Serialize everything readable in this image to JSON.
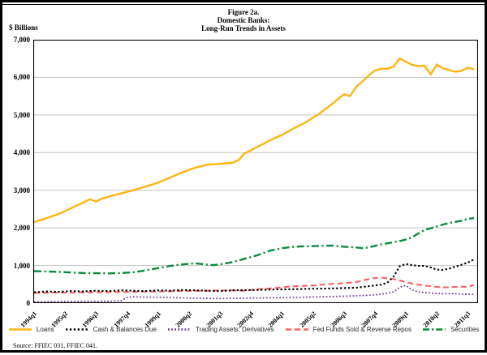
{
  "header": {
    "line1": "Figure 2a.",
    "line2": "Domestic Banks:",
    "line3": "Long-Run Trends in Assets"
  },
  "footer": {
    "source": "Source: FFIEC 031, FFIEC 041."
  },
  "chart_data": {
    "type": "line",
    "title": "Figure 2a. Domestic Banks: Long-Run Trends in Assets",
    "y_axis_label": "$ Billions",
    "ylim": [
      0,
      7000
    ],
    "grid": "horizontal",
    "legend_position": "bottom",
    "y_ticks": [
      {
        "value": 0,
        "label": "0"
      },
      {
        "value": 1000,
        "label": "1,000"
      },
      {
        "value": 2000,
        "label": "2,000"
      },
      {
        "value": 3000,
        "label": "3,000"
      },
      {
        "value": 4000,
        "label": "4,000"
      },
      {
        "value": 5000,
        "label": "5,000"
      },
      {
        "value": 6000,
        "label": "6,000"
      },
      {
        "value": 7000,
        "label": "7,000"
      }
    ],
    "x_start": "1994q1",
    "x_frequency": "quarterly",
    "x_count": 72,
    "x_tick_indices": [
      0,
      5,
      10,
      15,
      20,
      25,
      30,
      35,
      40,
      45,
      50,
      55,
      60,
      65,
      70
    ],
    "x_tick_labels": [
      "1994q1",
      "1995q2",
      "1996q3",
      "1997q4",
      "1999q1",
      "2000q2",
      "2001q3",
      "2002q4",
      "2004q1",
      "2005q2",
      "2006q3",
      "2007q4",
      "2009q1",
      "2010q2",
      "2011q3"
    ],
    "series": [
      {
        "key": "loans",
        "name": "Loans",
        "color": "#FFB412",
        "line_style": "solid",
        "values": [
          2150,
          2205,
          2260,
          2315,
          2370,
          2448,
          2525,
          2603,
          2680,
          2760,
          2700,
          2780,
          2830,
          2873,
          2915,
          2958,
          3000,
          3050,
          3100,
          3150,
          3200,
          3270,
          3340,
          3410,
          3480,
          3540,
          3600,
          3640,
          3680,
          3690,
          3700,
          3715,
          3730,
          3800,
          3980,
          4065,
          4150,
          4235,
          4320,
          4395,
          4470,
          4560,
          4650,
          4735,
          4820,
          4925,
          5030,
          5155,
          5280,
          5420,
          5550,
          5500,
          5750,
          5890,
          6050,
          6180,
          6230,
          6230,
          6280,
          6500,
          6420,
          6330,
          6300,
          6310,
          6080,
          6340,
          6240,
          6190,
          6150,
          6170,
          6260,
          6210
        ]
      },
      {
        "key": "cash",
        "name": "Cash & Balances Due",
        "color": "#000000",
        "line_style": "dotted",
        "values": [
          290,
          300,
          310,
          305,
          300,
          310,
          320,
          315,
          310,
          320,
          330,
          325,
          320,
          330,
          340,
          335,
          330,
          325,
          320,
          330,
          340,
          335,
          330,
          340,
          350,
          345,
          340,
          335,
          330,
          325,
          320,
          330,
          340,
          343,
          345,
          348,
          350,
          355,
          360,
          363,
          365,
          368,
          370,
          375,
          380,
          383,
          385,
          388,
          390,
          395,
          400,
          405,
          410,
          430,
          450,
          470,
          490,
          540,
          700,
          980,
          1040,
          1010,
          990,
          990,
          950,
          890,
          880,
          920,
          970,
          1020,
          1080,
          1160
        ]
      },
      {
        "key": "trading",
        "name": "Trading Assets: Derivatives",
        "color": "#7030A0",
        "line_style": "dotted",
        "values": [
          30,
          33,
          35,
          38,
          40,
          41,
          43,
          44,
          45,
          46,
          48,
          49,
          50,
          55,
          60,
          150,
          165,
          163,
          160,
          158,
          155,
          153,
          150,
          145,
          140,
          135,
          130,
          128,
          125,
          123,
          120,
          123,
          125,
          128,
          130,
          133,
          135,
          138,
          140,
          143,
          145,
          148,
          150,
          155,
          160,
          163,
          165,
          170,
          175,
          180,
          185,
          190,
          195,
          200,
          210,
          220,
          240,
          260,
          300,
          420,
          470,
          350,
          300,
          280,
          270,
          260,
          250,
          255,
          250,
          240,
          235,
          230
        ]
      },
      {
        "key": "fedfunds",
        "name": "Fed Funds Sold & Reverse Repos",
        "color": "#FA5E5E",
        "line_style": "dashed",
        "values": [
          270,
          273,
          275,
          278,
          280,
          281,
          283,
          284,
          285,
          286,
          288,
          289,
          290,
          293,
          295,
          298,
          300,
          303,
          305,
          308,
          310,
          313,
          315,
          318,
          320,
          323,
          325,
          328,
          330,
          333,
          335,
          338,
          340,
          335,
          330,
          350,
          370,
          380,
          390,
          405,
          420,
          435,
          450,
          455,
          460,
          470,
          480,
          495,
          510,
          520,
          530,
          545,
          560,
          600,
          640,
          670,
          680,
          660,
          640,
          600,
          560,
          520,
          490,
          470,
          450,
          430,
          420,
          420,
          430,
          440,
          430,
          480
        ]
      },
      {
        "key": "securities",
        "name": "Securities",
        "color": "#0A8A3C",
        "line_style": "dash-dot",
        "values": [
          850,
          845,
          840,
          835,
          830,
          822,
          815,
          808,
          800,
          798,
          795,
          793,
          790,
          795,
          800,
          810,
          820,
          845,
          870,
          900,
          930,
          960,
          990,
          1010,
          1030,
          1045,
          1060,
          1040,
          1020,
          1010,
          1030,
          1060,
          1090,
          1135,
          1180,
          1225,
          1270,
          1330,
          1390,
          1425,
          1460,
          1480,
          1500,
          1505,
          1510,
          1515,
          1520,
          1525,
          1530,
          1515,
          1500,
          1490,
          1480,
          1460,
          1480,
          1520,
          1560,
          1590,
          1620,
          1650,
          1690,
          1750,
          1850,
          1940,
          1990,
          2040,
          2090,
          2130,
          2160,
          2190,
          2240,
          2260
        ]
      }
    ]
  }
}
